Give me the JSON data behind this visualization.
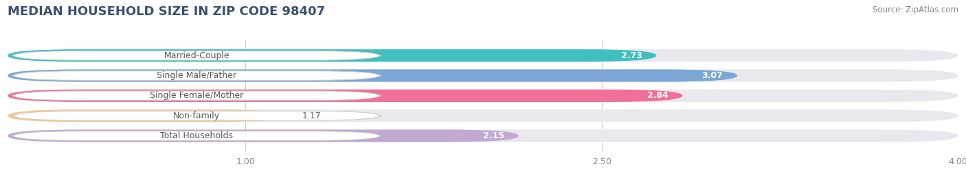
{
  "title": "MEDIAN HOUSEHOLD SIZE IN ZIP CODE 98407",
  "source": "Source: ZipAtlas.com",
  "categories": [
    "Married-Couple",
    "Single Male/Father",
    "Single Female/Mother",
    "Non-family",
    "Total Households"
  ],
  "values": [
    2.73,
    3.07,
    2.84,
    1.17,
    2.15
  ],
  "colors": [
    "#40bfbf",
    "#7ba7d4",
    "#f0709a",
    "#f5c992",
    "#c3a8d1"
  ],
  "xlim": [
    0,
    4.0
  ],
  "xticks": [
    1.0,
    2.5,
    4.0
  ],
  "bar_height": 0.62,
  "background_color": "#ffffff",
  "bar_bg_color": "#e8e8ed",
  "title_fontsize": 13,
  "label_fontsize": 9,
  "value_fontsize": 9,
  "source_fontsize": 8.5,
  "title_color": "#3a5070",
  "source_color": "#888888",
  "tick_color": "#888888",
  "label_box_color": "#ffffff",
  "label_text_color": "#555555"
}
